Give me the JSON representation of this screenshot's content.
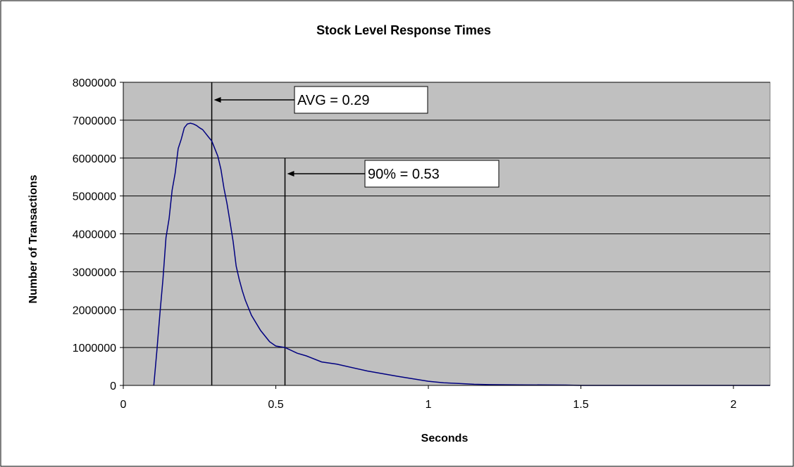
{
  "chart_data": {
    "type": "line",
    "title": "Stock Level Response Times",
    "xlabel": "Seconds",
    "ylabel": "Number of Transactions",
    "xlim": [
      0,
      2.12
    ],
    "ylim": [
      0,
      8000000
    ],
    "x_ticks": [
      0,
      0.5,
      1,
      1.5,
      2
    ],
    "x_tick_labels": [
      "0",
      "0.5",
      "1",
      "1.5",
      "2"
    ],
    "y_ticks": [
      0,
      1000000,
      2000000,
      3000000,
      4000000,
      5000000,
      6000000,
      7000000,
      8000000
    ],
    "y_tick_labels": [
      "0",
      "1000000",
      "2000000",
      "3000000",
      "4000000",
      "5000000",
      "6000000",
      "7000000",
      "8000000"
    ],
    "grid": "horizontal",
    "legend": "none",
    "plot_background": "#c0c0c0",
    "series": [
      {
        "color": "#000080",
        "x": [
          0.1,
          0.11,
          0.12,
          0.13,
          0.14,
          0.15,
          0.16,
          0.17,
          0.18,
          0.19,
          0.2,
          0.21,
          0.22,
          0.23,
          0.24,
          0.25,
          0.26,
          0.27,
          0.28,
          0.29,
          0.3,
          0.31,
          0.32,
          0.33,
          0.34,
          0.35,
          0.36,
          0.37,
          0.38,
          0.39,
          0.4,
          0.42,
          0.45,
          0.48,
          0.5,
          0.53,
          0.57,
          0.6,
          0.65,
          0.7,
          0.8,
          0.9,
          1.0,
          1.05,
          1.1,
          1.15,
          1.2,
          1.3,
          1.4,
          1.45,
          1.5,
          1.6,
          1.8,
          2.0,
          2.12
        ],
        "y": [
          0,
          900000,
          1900000,
          2800000,
          3900000,
          4400000,
          5150000,
          5600000,
          6250000,
          6500000,
          6800000,
          6900000,
          6920000,
          6900000,
          6860000,
          6800000,
          6750000,
          6650000,
          6550000,
          6450000,
          6250000,
          6050000,
          5700000,
          5200000,
          4800000,
          4300000,
          3800000,
          3150000,
          2800000,
          2500000,
          2250000,
          1850000,
          1450000,
          1150000,
          1040000,
          1000000,
          850000,
          780000,
          620000,
          560000,
          380000,
          240000,
          110000,
          70000,
          50000,
          30000,
          20000,
          15000,
          12000,
          10000,
          0,
          0,
          0,
          0,
          0
        ]
      }
    ],
    "annotations": [
      {
        "text": "AVG = 0.29",
        "x": 0.29,
        "y_top": 8000000
      },
      {
        "text": "90% = 0.53",
        "x": 0.53,
        "y_top": 6000000
      }
    ]
  }
}
